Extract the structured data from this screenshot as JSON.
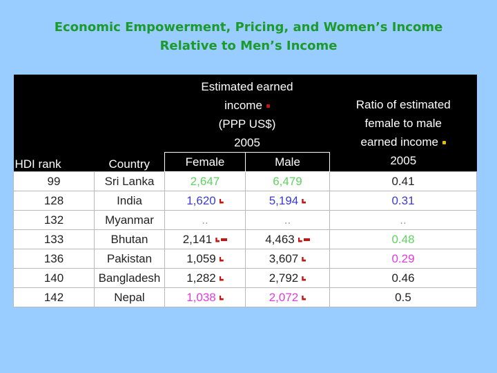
{
  "title": {
    "line1": "Economic Empowerment, Pricing, and Women’s Income",
    "line2": "Relative to Men’s Income"
  },
  "table": {
    "headers": {
      "hdi_rank": "HDI rank",
      "country": "Country",
      "income_group_line1": "Estimated earned",
      "income_group_line2": "income",
      "income_group_line3": "(PPP US$)",
      "income_group_line4": "2005",
      "female": "Female",
      "male": "Male",
      "ratio_line1": "Ratio of estimated",
      "ratio_line2": "female to male",
      "ratio_line3": "earned income",
      "ratio_line4": "2005"
    },
    "rows": [
      {
        "rank": "99",
        "country": "Sri Lanka",
        "female": "2,647",
        "male": "6,479",
        "ratio": "0.41"
      },
      {
        "rank": "128",
        "country": "India",
        "female": "1,620",
        "male": "5,194",
        "ratio": "0.31"
      },
      {
        "rank": "132",
        "country": "Myanmar",
        "female": "..",
        "male": "..",
        "ratio": ".."
      },
      {
        "rank": "133",
        "country": "Bhutan",
        "female": "2,141",
        "male": "4,463",
        "ratio": "0.48"
      },
      {
        "rank": "136",
        "country": "Pakistan",
        "female": "1,059",
        "male": "3,607",
        "ratio": "0.29"
      },
      {
        "rank": "140",
        "country": "Bangladesh",
        "female": "1,282",
        "male": "2,792",
        "ratio": "0.46"
      },
      {
        "rank": "142",
        "country": "Nepal",
        "female": "1,038",
        "male": "2,072",
        "ratio": "0.5"
      }
    ]
  },
  "colors": {
    "background": "#99ccff",
    "title": "#1d9a2c",
    "header_bg": "#000000",
    "green": "#5fd35f",
    "blue": "#3b3bcf",
    "magenta": "#e23ae2",
    "marker_red": "#c41515",
    "marker_yellow": "#e0c000"
  }
}
